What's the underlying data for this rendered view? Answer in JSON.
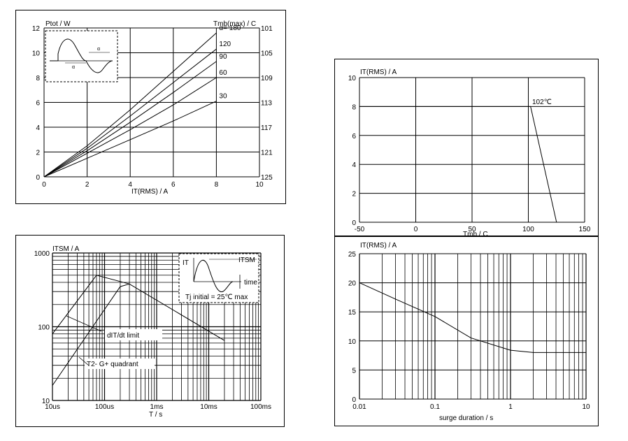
{
  "chart_data": [
    {
      "type": "line",
      "title": "",
      "ylabel": "Ptot / W",
      "xlabel": "IT(RMS) / A",
      "y2label": "Tmb(max) / C",
      "xlim": [
        0,
        10
      ],
      "ylim": [
        0,
        12
      ],
      "x_ticks": [
        "0",
        "2",
        "4",
        "6",
        "8",
        "10"
      ],
      "y_ticks": [
        "0",
        "2",
        "4",
        "6",
        "8",
        "10",
        "12"
      ],
      "y2_ticks": [
        "125",
        "121",
        "117",
        "113",
        "109",
        "105",
        "101"
      ],
      "inset_label": "α",
      "series": [
        {
          "name": "α= 180",
          "x": [
            0,
            2,
            4,
            6,
            8
          ],
          "y": [
            0,
            2.5,
            5.4,
            8.5,
            11.6
          ]
        },
        {
          "name": "120",
          "x": [
            0,
            2,
            4,
            6,
            8
          ],
          "y": [
            0,
            2.3,
            4.9,
            7.6,
            10.3
          ]
        },
        {
          "name": "90",
          "x": [
            0,
            2,
            4,
            6,
            8
          ],
          "y": [
            0,
            2.1,
            4.4,
            6.8,
            9.3
          ]
        },
        {
          "name": "60",
          "x": [
            0,
            2,
            4,
            6,
            8
          ],
          "y": [
            0,
            1.9,
            3.8,
            5.8,
            8.0
          ]
        },
        {
          "name": "30",
          "x": [
            0,
            2,
            4,
            6,
            8
          ],
          "y": [
            0,
            1.5,
            3.0,
            4.5,
            6.1
          ]
        }
      ]
    },
    {
      "type": "line",
      "title": "",
      "ylabel": "IT(RMS) / A",
      "xlabel": "Tmb / C",
      "xlim": [
        -50,
        150
      ],
      "ylim": [
        0,
        10
      ],
      "x_ticks": [
        "-50",
        "0",
        "50",
        "100",
        "150"
      ],
      "y_ticks": [
        "0",
        "2",
        "4",
        "6",
        "8",
        "10"
      ],
      "annotation": "102℃",
      "series": [
        {
          "x": [
            -50,
            102,
            125
          ],
          "y": [
            8,
            8,
            0
          ]
        }
      ]
    },
    {
      "type": "line",
      "title": "",
      "xscale": "log",
      "yscale": "log",
      "ylabel": "ITSM / A",
      "xlabel": "T / s",
      "x_ticks": [
        "10us",
        "100us",
        "1ms",
        "10ms",
        "100ms"
      ],
      "y_ticks": [
        "10",
        "100",
        "1000"
      ],
      "annotations": {
        "dit": "dIT/dt limit",
        "quad": "T2- G+ quadrant",
        "it_label": "IT",
        "itsm_label": "ITSM",
        "time_label": "time",
        "tj_label": "Tj initial = 25℃ max"
      },
      "series": [
        {
          "x_seconds": [
            1e-05,
            7e-05,
            0.0003,
            0.02
          ],
          "y": [
            80,
            500,
            380,
            65
          ]
        },
        {
          "x_seconds": [
            1e-05,
            0.0002,
            0.0003
          ],
          "y": [
            16,
            350,
            380
          ]
        }
      ]
    },
    {
      "type": "line",
      "title": "",
      "xscale": "log",
      "ylabel": "IT(RMS) / A",
      "xlabel": "surge duration / s",
      "xlim": [
        0.01,
        10
      ],
      "ylim": [
        0,
        25
      ],
      "x_ticks": [
        "0.01",
        "0.1",
        "1",
        "10"
      ],
      "y_ticks": [
        "0",
        "5",
        "10",
        "15",
        "20",
        "25"
      ],
      "series": [
        {
          "x": [
            0.01,
            0.03,
            0.1,
            0.3,
            1,
            2,
            5,
            10
          ],
          "y": [
            20,
            17.2,
            14.2,
            10.5,
            8.4,
            8.0,
            8.0,
            8.0
          ]
        }
      ]
    }
  ]
}
